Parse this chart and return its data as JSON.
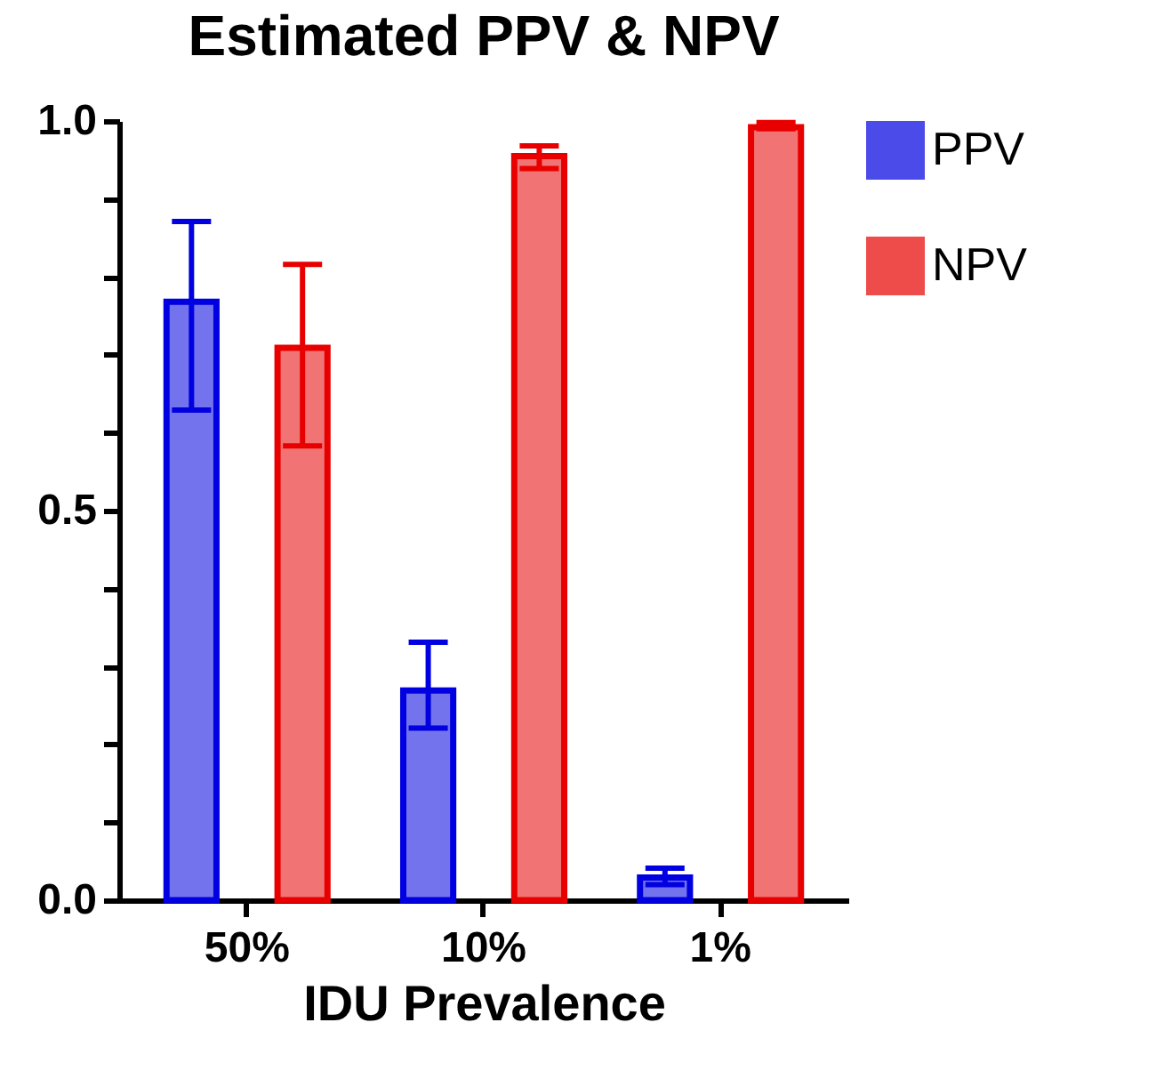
{
  "chart_data": {
    "type": "bar",
    "title": "Estimated PPV & NPV",
    "xlabel": "IDU Prevalence",
    "categories": [
      "50%",
      "10%",
      "1%"
    ],
    "series": [
      {
        "name": "PPV",
        "color": "#0000e0",
        "values": [
          0.768,
          0.269,
          0.029
        ],
        "errors": [
          [
            0.629,
            0.871
          ],
          [
            0.221,
            0.331
          ],
          [
            0.02,
            0.041
          ]
        ]
      },
      {
        "name": "NPV",
        "color": "#e80000",
        "values": [
          0.709,
          0.955,
          0.992
        ],
        "errors": [
          [
            0.583,
            0.816
          ],
          [
            0.939,
            0.968
          ],
          [
            0.99,
            0.998
          ]
        ]
      }
    ],
    "ylim": [
      0,
      1
    ],
    "yticks": [
      {
        "value": 0,
        "label": "0.0"
      },
      {
        "value": 0.1,
        "label": null
      },
      {
        "value": 0.2,
        "label": null
      },
      {
        "value": 0.3,
        "label": null
      },
      {
        "value": 0.4,
        "label": null
      },
      {
        "value": 0.5,
        "label": "0.5"
      },
      {
        "value": 0.6,
        "label": null
      },
      {
        "value": 0.7,
        "label": null
      },
      {
        "value": 0.8,
        "label": null
      },
      {
        "value": 0.9,
        "label": null
      },
      {
        "value": 1,
        "label": "1.0"
      }
    ],
    "grid": false,
    "legend": "right"
  }
}
